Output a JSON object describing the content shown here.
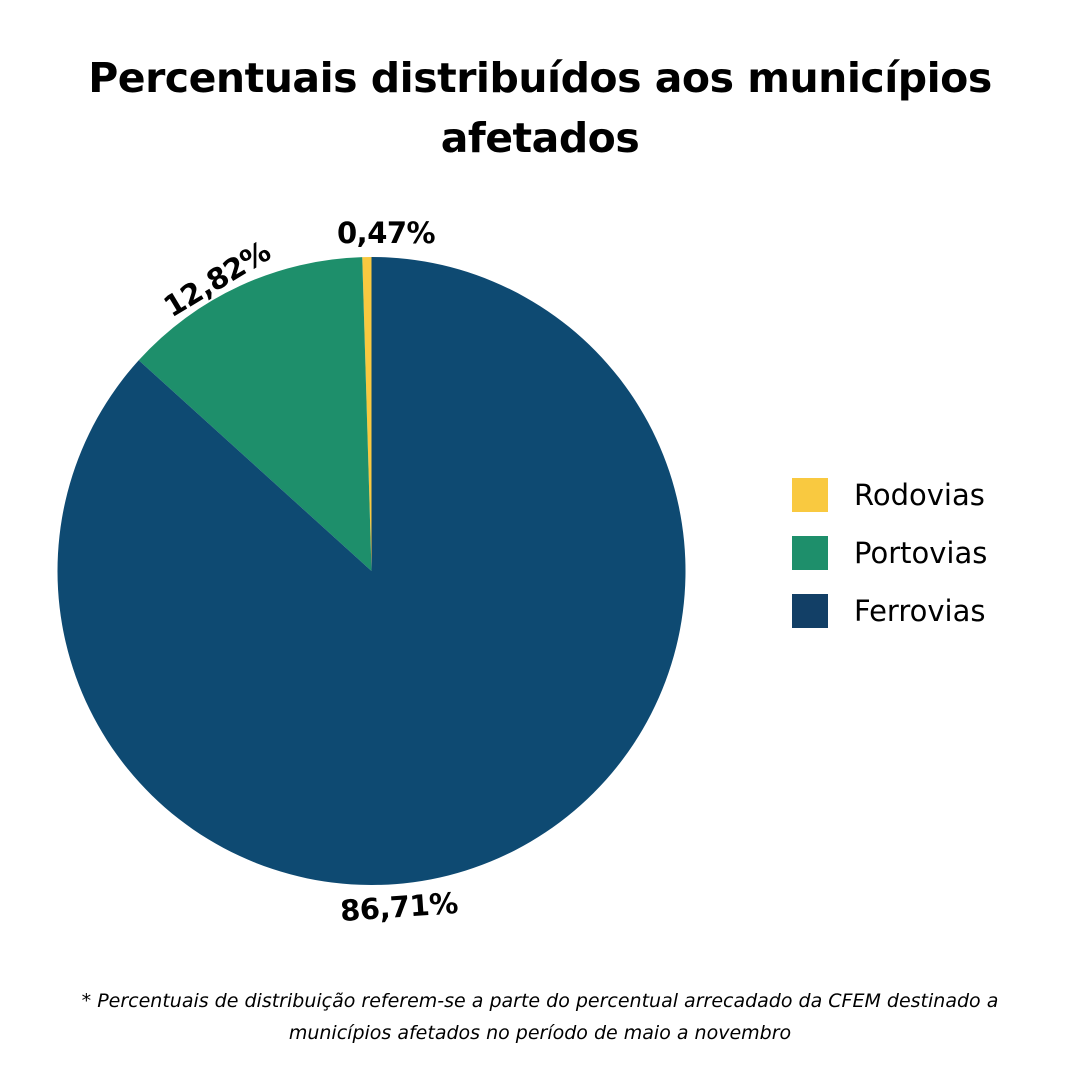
{
  "title_line1": "Percentuais distribuídos aos municípios",
  "title_line2": "afetados",
  "chart_data": {
    "type": "pie",
    "title": "Percentuais distribuídos aos municípios afetados",
    "categories": [
      "Rodovias",
      "Portovias",
      "Ferrovias"
    ],
    "values": [
      0.47,
      12.82,
      86.71
    ],
    "labels": [
      "0,47%",
      "12,82%",
      "86,71%"
    ],
    "colors": [
      "#F9C940",
      "#1E8F6B",
      "#0E4A72"
    ],
    "start_angle_deg": 0,
    "direction": "counterclockwise",
    "legend_position": "right",
    "unit": "%"
  },
  "legend": [
    {
      "label": "Rodovias",
      "color": "#F9C940"
    },
    {
      "label": "Portovias",
      "color": "#1E8F6B"
    },
    {
      "label": "Ferrovias",
      "color": "#123F66"
    }
  ],
  "footnote_line1": "* Percentuais de distribuição referem-se a parte do percentual arrecadado da CFEM destinado a",
  "footnote_line2": "municípios afetados no período de maio a novembro"
}
